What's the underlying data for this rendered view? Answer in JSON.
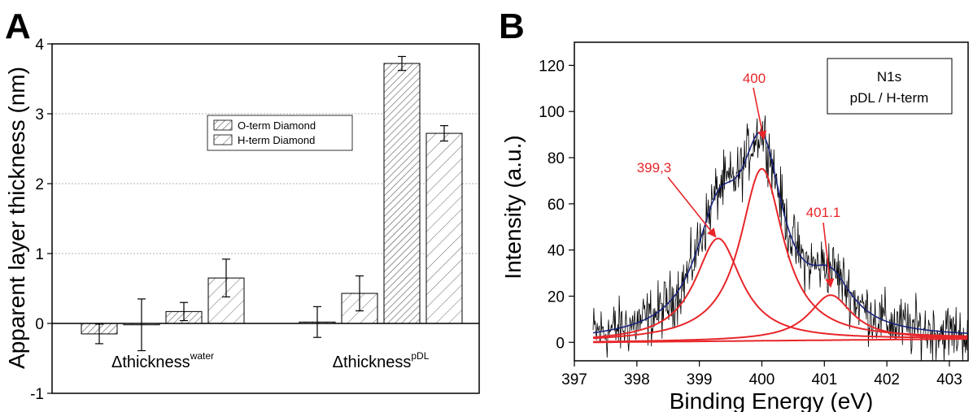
{
  "chart_data": [
    {
      "panel_label": "A",
      "type": "bar",
      "ylabel": "Apparent layer thickness (nm)",
      "ylim": [
        -1,
        4
      ],
      "yticks": [
        -1,
        0,
        1,
        2,
        3,
        4
      ],
      "grid": "horizontal dotted",
      "groups": [
        {
          "label_base": "Δthickness",
          "label_sup": "water",
          "values": [
            -0.15,
            -0.02,
            0.17,
            0.65
          ],
          "errors": [
            0.14,
            0.37,
            0.13,
            0.27
          ],
          "hatch": [
            "dense",
            "sparse",
            "dense",
            "sparse"
          ]
        },
        {
          "label_base": "Δthickness",
          "label_sup": "pDL",
          "values": [
            0.02,
            0.43,
            3.72,
            2.72
          ],
          "errors": [
            0.22,
            0.25,
            0.1,
            0.11
          ],
          "hatch": [
            "dense",
            "sparse",
            "dense",
            "sparse"
          ]
        }
      ],
      "legend": {
        "placement": "upper-center",
        "entries": [
          "O-term Diamond",
          "H-term Diamond"
        ]
      }
    },
    {
      "panel_label": "B",
      "type": "line",
      "xlabel": "Binding Energy (eV)",
      "ylabel": "Intensity (a.u.)",
      "xlim": [
        397,
        403.3
      ],
      "ylim": [
        -8,
        130
      ],
      "xticks": [
        397,
        398,
        399,
        400,
        401,
        402,
        403
      ],
      "yticks": [
        0,
        20,
        40,
        60,
        80,
        100,
        120
      ],
      "legend_box": [
        "N1s",
        "pDL / H-term"
      ],
      "peaks": [
        {
          "center": 399.3,
          "amplitude": 44.5,
          "hwhm": 0.45
        },
        {
          "center": 400.0,
          "amplitude": 74.5,
          "hwhm": 0.42
        },
        {
          "center": 401.1,
          "amplitude": 19.5,
          "hwhm": 0.42
        }
      ],
      "baseline": {
        "start": 0.0,
        "end": 1.5,
        "x_range": [
          397.3,
          403.3
        ]
      },
      "raw_noise_amplitude": 9,
      "annotations": [
        {
          "text": "400",
          "target_x": 400.03,
          "target_y": 88
        },
        {
          "text": "399,3",
          "target_x": 399.3,
          "target_y": 45
        },
        {
          "text": "401.1",
          "target_x": 401.1,
          "target_y": 24
        }
      ],
      "colors": {
        "raw": "#000000",
        "envelope": "#1a237e",
        "components": "#e8262a",
        "annotation": "#e8262a"
      }
    }
  ]
}
